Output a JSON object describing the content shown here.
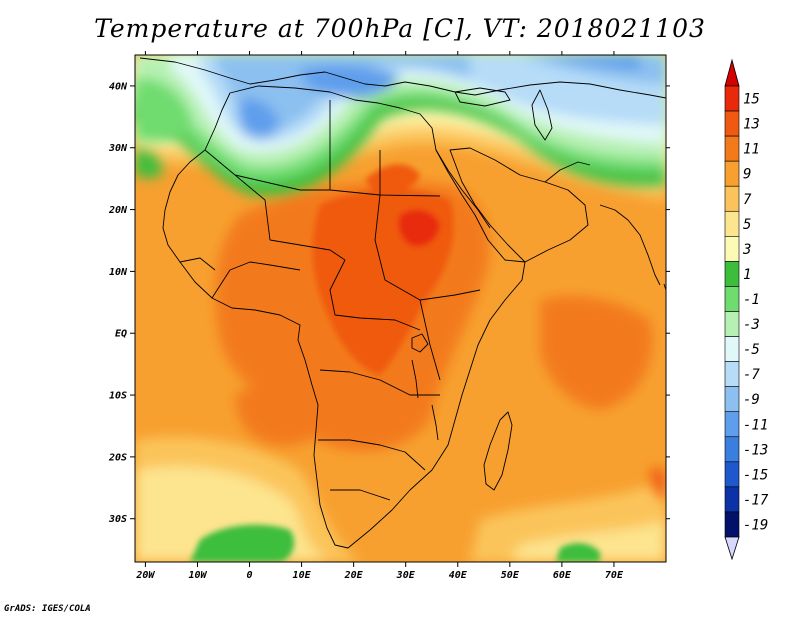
{
  "title": "Temperature at 700hPa [C], VT: 2018021103",
  "credit": "GrADS: IGES/COLA",
  "map": {
    "region": "Africa",
    "lon_range": [
      -22,
      80
    ],
    "lat_range": [
      -37,
      45
    ],
    "lon_ticks": [
      {
        "value": -20,
        "label": "20W"
      },
      {
        "value": -10,
        "label": "10W"
      },
      {
        "value": 0,
        "label": "0"
      },
      {
        "value": 10,
        "label": "10E"
      },
      {
        "value": 20,
        "label": "20E"
      },
      {
        "value": 30,
        "label": "30E"
      },
      {
        "value": 40,
        "label": "40E"
      },
      {
        "value": 50,
        "label": "50E"
      },
      {
        "value": 60,
        "label": "60E"
      },
      {
        "value": 70,
        "label": "70E"
      }
    ],
    "lat_ticks": [
      {
        "value": 40,
        "label": "40N"
      },
      {
        "value": 30,
        "label": "30N"
      },
      {
        "value": 20,
        "label": "20N"
      },
      {
        "value": 10,
        "label": "10N"
      },
      {
        "value": 0,
        "label": "EQ"
      },
      {
        "value": -10,
        "label": "10S"
      },
      {
        "value": -20,
        "label": "20S"
      },
      {
        "value": -30,
        "label": "30S"
      }
    ]
  },
  "colorbar": {
    "unit": "C",
    "arrow_top_color": "#d60000",
    "arrow_bottom_color": "#d8d8ff",
    "levels": [
      {
        "label": "15",
        "color": "#e8290c"
      },
      {
        "label": "13",
        "color": "#f05a10"
      },
      {
        "label": "11",
        "color": "#f37a1a"
      },
      {
        "label": "9",
        "color": "#f7a030"
      },
      {
        "label": "7",
        "color": "#fbc45a"
      },
      {
        "label": "5",
        "color": "#fde48e"
      },
      {
        "label": "3",
        "color": "#fdfab5"
      },
      {
        "label": "1",
        "color": "#3cbe3c"
      },
      {
        "label": "-1",
        "color": "#6fdc6f"
      },
      {
        "label": "-3",
        "color": "#b6f0b2"
      },
      {
        "label": "-5",
        "color": "#e1f8f8"
      },
      {
        "label": "-7",
        "color": "#b6dcf8"
      },
      {
        "label": "-9",
        "color": "#8cc0f0"
      },
      {
        "label": "-11",
        "color": "#5e9eec"
      },
      {
        "label": "-13",
        "color": "#3a7ee0"
      },
      {
        "label": "-15",
        "color": "#1e58cc"
      },
      {
        "label": "-17",
        "color": "#0c32a8"
      },
      {
        "label": "-19",
        "color": "#02126a"
      }
    ]
  }
}
